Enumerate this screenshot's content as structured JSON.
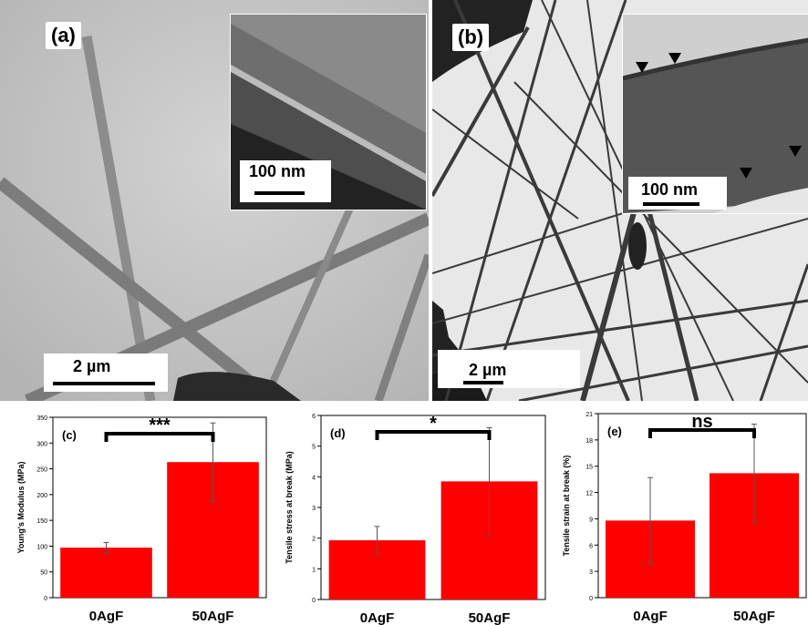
{
  "panels": {
    "a": {
      "label": "(a)",
      "scale_main": "2 µm",
      "scale_inset": "100 nm"
    },
    "b": {
      "label": "(b)",
      "scale_main": "2 µm",
      "scale_inset": "100 nm"
    }
  },
  "chart_data": [
    {
      "type": "bar",
      "panel_label": "(c)",
      "categories": [
        "0AgF",
        "50AgF"
      ],
      "values": [
        97,
        263
      ],
      "errors": [
        10,
        76
      ],
      "ylabel": "Young's Modulus (MPa)",
      "ylim": [
        0,
        350
      ],
      "yticks": [
        0,
        50,
        100,
        150,
        200,
        250,
        300,
        350
      ],
      "significance": "***",
      "bar_color": "#ff0000"
    },
    {
      "type": "bar",
      "panel_label": "(d)",
      "categories": [
        "0AgF",
        "50AgF"
      ],
      "values": [
        1.93,
        3.85
      ],
      "errors": [
        0.45,
        1.75
      ],
      "ylabel": "Tensile stress at break (MPa)",
      "ylim": [
        0,
        6
      ],
      "yticks": [
        0,
        1,
        2,
        3,
        4,
        5,
        6
      ],
      "significance": "*",
      "bar_color": "#ff0000"
    },
    {
      "type": "bar",
      "panel_label": "(e)",
      "categories": [
        "0AgF",
        "50AgF"
      ],
      "values": [
        8.8,
        14.2
      ],
      "errors": [
        4.9,
        5.6
      ],
      "ylabel": "Tensile strain at break (%)",
      "ylim": [
        0,
        21
      ],
      "yticks": [
        0,
        3,
        6,
        9,
        12,
        15,
        18,
        21
      ],
      "significance": "ns",
      "bar_color": "#ff0000"
    }
  ]
}
